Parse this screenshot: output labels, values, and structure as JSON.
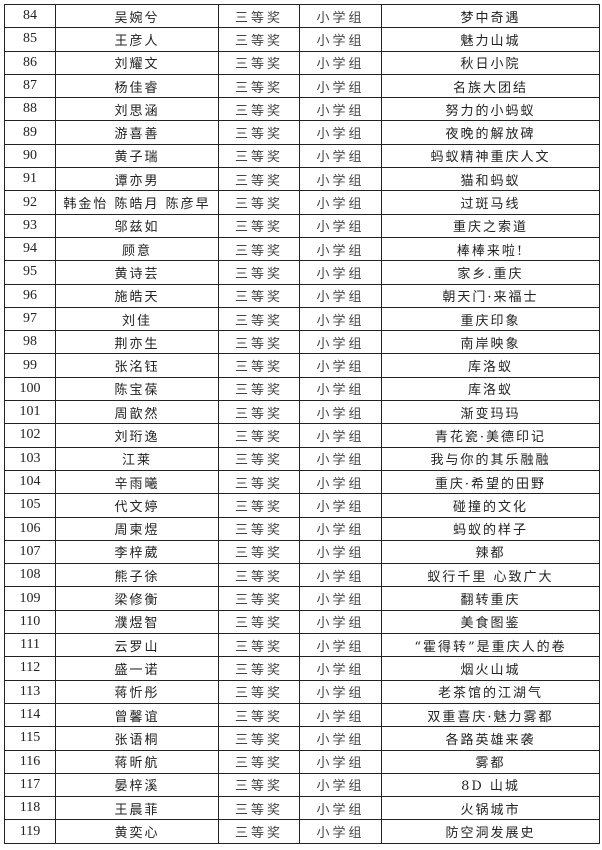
{
  "rows": [
    {
      "no": "84",
      "name": "吴婉兮",
      "award": "三等奖",
      "group": "小学组",
      "title": "梦中奇遇"
    },
    {
      "no": "85",
      "name": "王彦人",
      "award": "三等奖",
      "group": "小学组",
      "title": "魅力山城"
    },
    {
      "no": "86",
      "name": "刘耀文",
      "award": "三等奖",
      "group": "小学组",
      "title": "秋日小院"
    },
    {
      "no": "87",
      "name": "杨佳睿",
      "award": "三等奖",
      "group": "小学组",
      "title": "名族大团结"
    },
    {
      "no": "88",
      "name": "刘思涵",
      "award": "三等奖",
      "group": "小学组",
      "title": "努力的小蚂蚁"
    },
    {
      "no": "89",
      "name": "游喜善",
      "award": "三等奖",
      "group": "小学组",
      "title": "夜晚的解放碑"
    },
    {
      "no": "90",
      "name": "黄子瑞",
      "award": "三等奖",
      "group": "小学组",
      "title": "蚂蚁精神重庆人文"
    },
    {
      "no": "91",
      "name": "谭亦男",
      "award": "三等奖",
      "group": "小学组",
      "title": "猫和蚂蚁"
    },
    {
      "no": "92",
      "name": "韩金怡 陈皓月 陈彦早",
      "award": "三等奖",
      "group": "小学组",
      "title": "过斑马线"
    },
    {
      "no": "93",
      "name": "邬兹如",
      "award": "三等奖",
      "group": "小学组",
      "title": "重庆之索道"
    },
    {
      "no": "94",
      "name": "顾意",
      "award": "三等奖",
      "group": "小学组",
      "title": "棒棒来啦!"
    },
    {
      "no": "95",
      "name": "黄诗芸",
      "award": "三等奖",
      "group": "小学组",
      "title": "家乡.重庆"
    },
    {
      "no": "96",
      "name": "施皓天",
      "award": "三等奖",
      "group": "小学组",
      "title": "朝天门·来福士"
    },
    {
      "no": "97",
      "name": "刘佳",
      "award": "三等奖",
      "group": "小学组",
      "title": "重庆印象"
    },
    {
      "no": "98",
      "name": "荆亦生",
      "award": "三等奖",
      "group": "小学组",
      "title": "南岸映象"
    },
    {
      "no": "99",
      "name": "张洺钰",
      "award": "三等奖",
      "group": "小学组",
      "title": "库洛蚁"
    },
    {
      "no": "100",
      "name": "陈宝葆",
      "award": "三等奖",
      "group": "小学组",
      "title": "库洛蚁"
    },
    {
      "no": "101",
      "name": "周歆然",
      "award": "三等奖",
      "group": "小学组",
      "title": "渐变玛玛"
    },
    {
      "no": "102",
      "name": "刘珩逸",
      "award": "三等奖",
      "group": "小学组",
      "title": "青花瓷·美德印记"
    },
    {
      "no": "103",
      "name": "江莱",
      "award": "三等奖",
      "group": "小学组",
      "title": "我与你的其乐融融"
    },
    {
      "no": "104",
      "name": "辛雨曦",
      "award": "三等奖",
      "group": "小学组",
      "title": "重庆·希望的田野"
    },
    {
      "no": "105",
      "name": "代文婷",
      "award": "三等奖",
      "group": "小学组",
      "title": "碰撞的文化"
    },
    {
      "no": "106",
      "name": "周柬煜",
      "award": "三等奖",
      "group": "小学组",
      "title": "蚂蚁的样子"
    },
    {
      "no": "107",
      "name": "李梓葳",
      "award": "三等奖",
      "group": "小学组",
      "title": "辣都"
    },
    {
      "no": "108",
      "name": "熊子徐",
      "award": "三等奖",
      "group": "小学组",
      "title": "蚁行千里 心致广大"
    },
    {
      "no": "109",
      "name": "梁修衡",
      "award": "三等奖",
      "group": "小学组",
      "title": "翻转重庆"
    },
    {
      "no": "110",
      "name": "濮煜智",
      "award": "三等奖",
      "group": "小学组",
      "title": "美食图鉴"
    },
    {
      "no": "111",
      "name": "云罗山",
      "award": "三等奖",
      "group": "小学组",
      "title": "“霍得转”是重庆人的卷"
    },
    {
      "no": "112",
      "name": "盛一诺",
      "award": "三等奖",
      "group": "小学组",
      "title": "烟火山城"
    },
    {
      "no": "113",
      "name": "蒋忻彤",
      "award": "三等奖",
      "group": "小学组",
      "title": "老茶馆的江湖气"
    },
    {
      "no": "114",
      "name": "曾馨谊",
      "award": "三等奖",
      "group": "小学组",
      "title": "双重喜庆·魅力雾都"
    },
    {
      "no": "115",
      "name": "张语桐",
      "award": "三等奖",
      "group": "小学组",
      "title": "各路英雄来袭"
    },
    {
      "no": "116",
      "name": "蒋昕航",
      "award": "三等奖",
      "group": "小学组",
      "title": "雾都"
    },
    {
      "no": "117",
      "name": "晏梓溪",
      "award": "三等奖",
      "group": "小学组",
      "title": "8D 山城"
    },
    {
      "no": "118",
      "name": "王晨菲",
      "award": "三等奖",
      "group": "小学组",
      "title": "火锅城市"
    },
    {
      "no": "119",
      "name": "黄奕心",
      "award": "三等奖",
      "group": "小学组",
      "title": "防空洞发展史"
    }
  ]
}
